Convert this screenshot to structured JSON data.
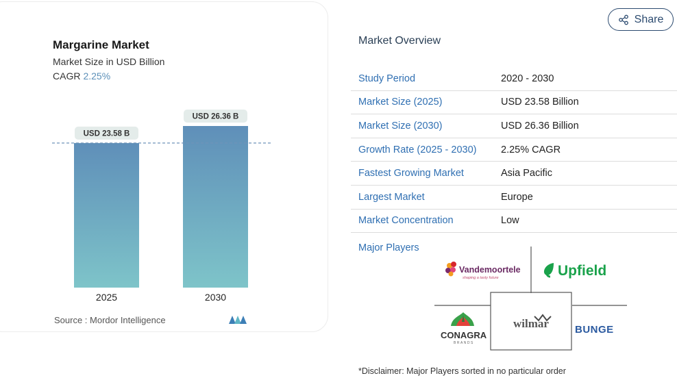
{
  "chart_card": {
    "title": "Margarine Market",
    "subtitle": "Market Size in USD Billion",
    "cagr_label": "CAGR",
    "cagr_value": "2.25%",
    "source": "Source :  Mordor Intelligence"
  },
  "chart_data": {
    "type": "bar",
    "categories": [
      "2025",
      "2030"
    ],
    "values": [
      23.58,
      26.36
    ],
    "data_labels": [
      "USD 23.58 B",
      "USD 26.36 B"
    ],
    "title": "Margarine Market",
    "subtitle": "Market Size in USD Billion",
    "ylabel": "",
    "xlabel": "",
    "ylim": [
      0,
      26.36
    ],
    "reference_line": 23.58,
    "grid": false
  },
  "share": {
    "label": "Share",
    "icon": "share-icon"
  },
  "overview": {
    "title": "Market Overview",
    "rows": [
      {
        "key": "Study Period",
        "value": "2020 - 2030"
      },
      {
        "key": "Market Size (2025)",
        "value": "USD 23.58 Billion"
      },
      {
        "key": "Market Size (2030)",
        "value": "USD 26.36 Billion"
      },
      {
        "key": "Growth Rate (2025 - 2030)",
        "value": "2.25% CAGR"
      },
      {
        "key": "Fastest Growing Market",
        "value": "Asia Pacific"
      },
      {
        "key": "Largest Market",
        "value": "Europe"
      },
      {
        "key": "Market Concentration",
        "value": "Low"
      }
    ]
  },
  "players": {
    "label": "Major Players",
    "logos": {
      "vandemoortele": "Vandemoortele",
      "vandemoortele_tagline": "shaping a tasty future",
      "upfield": "Upfield",
      "conagra": "CONAGRA",
      "conagra_sub": "BRANDS",
      "wilmar": "wilmar",
      "bunge": "BUNGE"
    }
  },
  "disclaimer": "*Disclaimer: Major Players sorted in no particular order",
  "colors": {
    "bar_top": "#5f8fb9",
    "bar_bottom": "#7ec4c9",
    "link": "#2f6fb2",
    "accent": "#5b8fb8"
  }
}
